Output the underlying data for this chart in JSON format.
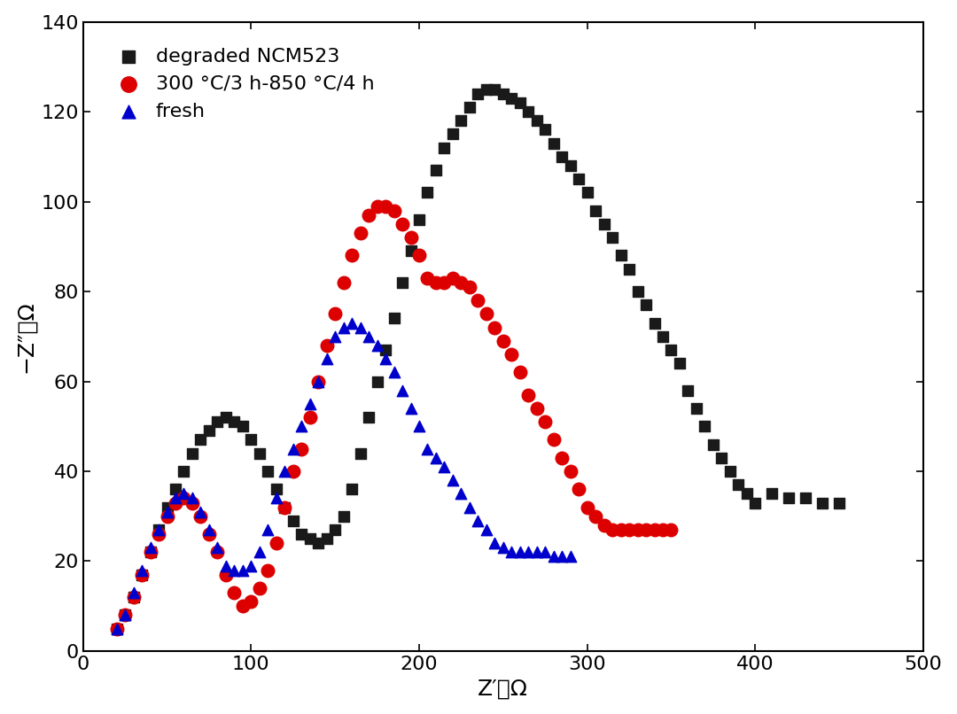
{
  "black_x": [
    20,
    25,
    30,
    35,
    40,
    45,
    50,
    55,
    60,
    65,
    70,
    75,
    80,
    85,
    90,
    95,
    100,
    105,
    110,
    115,
    120,
    125,
    130,
    135,
    140,
    145,
    150,
    155,
    160,
    165,
    170,
    175,
    180,
    185,
    190,
    195,
    200,
    205,
    210,
    215,
    220,
    225,
    230,
    235,
    240,
    245,
    250,
    255,
    260,
    265,
    270,
    275,
    280,
    285,
    290,
    295,
    300,
    305,
    310,
    315,
    320,
    325,
    330,
    335,
    340,
    345,
    350,
    355,
    360,
    365,
    370,
    375,
    380,
    385,
    390,
    395,
    400,
    410,
    420,
    430,
    440,
    450
  ],
  "black_y": [
    5,
    8,
    12,
    17,
    22,
    27,
    32,
    36,
    40,
    44,
    47,
    49,
    51,
    52,
    51,
    50,
    47,
    44,
    40,
    36,
    32,
    29,
    26,
    25,
    24,
    25,
    27,
    30,
    36,
    44,
    52,
    60,
    67,
    74,
    82,
    89,
    96,
    102,
    107,
    112,
    115,
    118,
    121,
    124,
    125,
    125,
    124,
    123,
    122,
    120,
    118,
    116,
    113,
    110,
    108,
    105,
    102,
    98,
    95,
    92,
    88,
    85,
    80,
    77,
    73,
    70,
    67,
    64,
    58,
    54,
    50,
    46,
    43,
    40,
    37,
    35,
    33,
    35,
    34,
    34,
    33,
    33
  ],
  "red_x": [
    20,
    25,
    30,
    35,
    40,
    45,
    50,
    55,
    60,
    65,
    70,
    75,
    80,
    85,
    90,
    95,
    100,
    105,
    110,
    115,
    120,
    125,
    130,
    135,
    140,
    145,
    150,
    155,
    160,
    165,
    170,
    175,
    180,
    185,
    190,
    195,
    200,
    205,
    210,
    215,
    220,
    225,
    230,
    235,
    240,
    245,
    250,
    255,
    260,
    265,
    270,
    275,
    280,
    285,
    290,
    295,
    300,
    305,
    310,
    315,
    320,
    325,
    330,
    335,
    340,
    345,
    350
  ],
  "red_y": [
    5,
    8,
    12,
    17,
    22,
    26,
    30,
    33,
    34,
    33,
    30,
    26,
    22,
    17,
    13,
    10,
    11,
    14,
    18,
    24,
    32,
    40,
    45,
    52,
    60,
    68,
    75,
    82,
    88,
    93,
    97,
    99,
    99,
    98,
    95,
    92,
    88,
    83,
    82,
    82,
    83,
    82,
    81,
    78,
    75,
    72,
    69,
    66,
    62,
    57,
    54,
    51,
    47,
    43,
    40,
    36,
    32,
    30,
    28,
    27,
    27,
    27,
    27,
    27,
    27,
    27,
    27
  ],
  "blue_x": [
    20,
    25,
    30,
    35,
    40,
    45,
    50,
    55,
    60,
    65,
    70,
    75,
    80,
    85,
    90,
    95,
    100,
    105,
    110,
    115,
    120,
    125,
    130,
    135,
    140,
    145,
    150,
    155,
    160,
    165,
    170,
    175,
    180,
    185,
    190,
    195,
    200,
    205,
    210,
    215,
    220,
    225,
    230,
    235,
    240,
    245,
    250,
    255,
    260,
    265,
    270,
    275,
    280,
    285,
    290
  ],
  "blue_y": [
    5,
    8,
    13,
    18,
    23,
    27,
    31,
    34,
    35,
    34,
    31,
    27,
    23,
    19,
    18,
    18,
    19,
    22,
    27,
    34,
    40,
    45,
    50,
    55,
    60,
    65,
    70,
    72,
    73,
    72,
    70,
    68,
    65,
    62,
    58,
    54,
    50,
    45,
    43,
    41,
    38,
    35,
    32,
    29,
    27,
    24,
    23,
    22,
    22,
    22,
    22,
    22,
    21,
    21,
    21
  ],
  "xlim": [
    0,
    500
  ],
  "ylim": [
    0,
    140
  ],
  "xticks": [
    0,
    100,
    200,
    300,
    400,
    500
  ],
  "yticks": [
    0,
    20,
    40,
    60,
    80,
    100,
    120,
    140
  ],
  "xlabel": "Z′／Ω",
  "ylabel": "−Z″／Ω",
  "legend_labels": [
    "degraded NCM523",
    "300 °C/3 h-850 °C/4 h",
    "fresh"
  ],
  "black_color": "#1a1a1a",
  "red_color": "#dd0000",
  "blue_color": "#0000cc",
  "marker_size_sq": 80,
  "marker_size_circ": 110,
  "marker_size_tri": 80,
  "label_fontsize": 18,
  "tick_fontsize": 16,
  "legend_fontsize": 16
}
